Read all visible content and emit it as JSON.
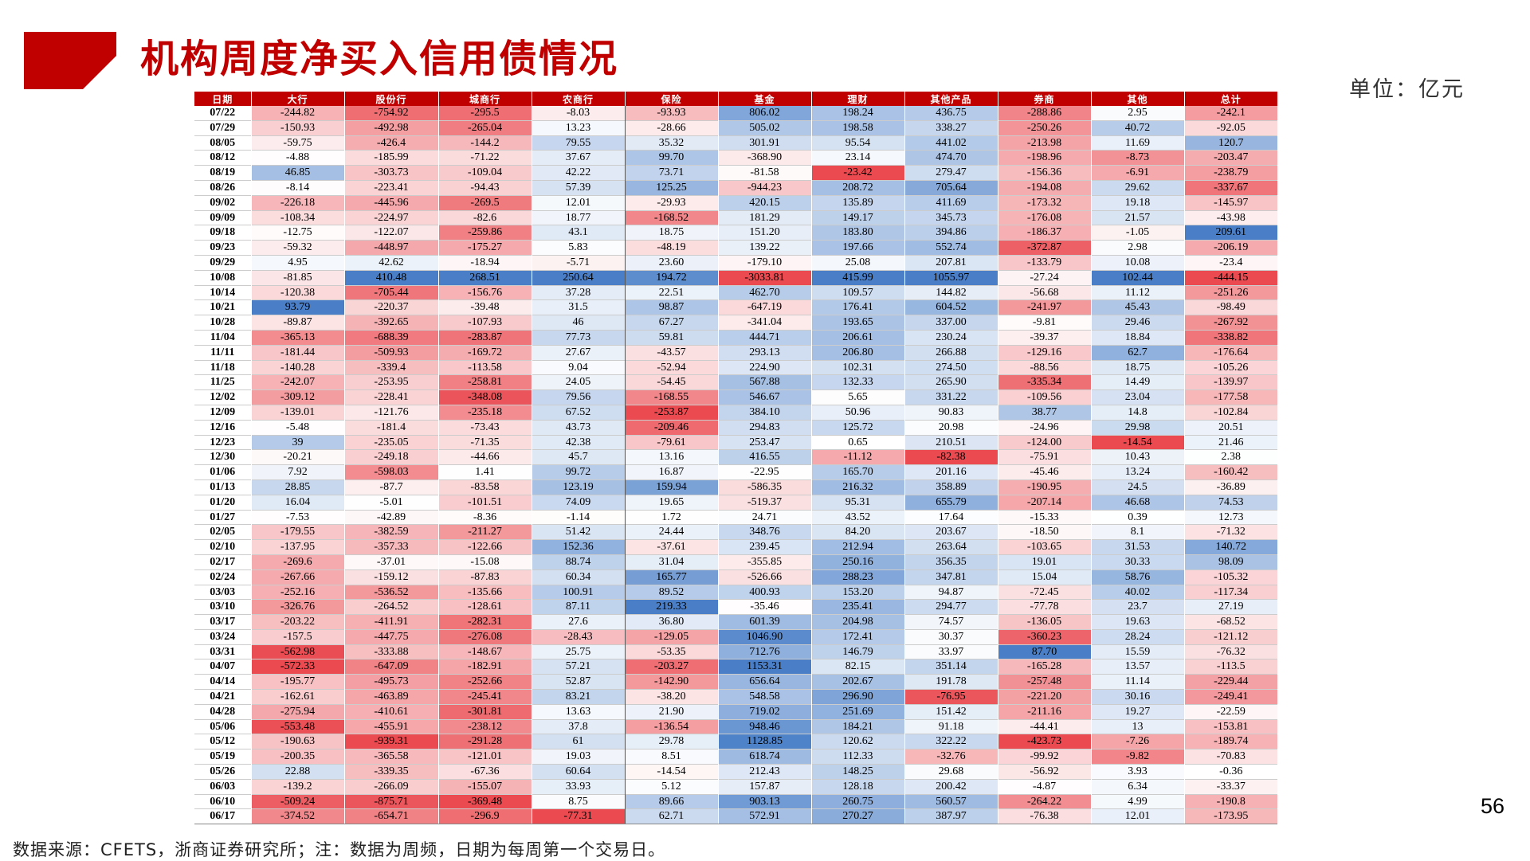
{
  "header": {
    "title": "机构周度净买入信用债情况",
    "unit": "单位：亿元",
    "page_number": "56"
  },
  "footer": {
    "source": "数据来源：CFETS，浙商证券研究所；注：数据为周频，日期为每周第一个交易日。"
  },
  "colors": {
    "brand_red": "#c00000",
    "positive_blue": "#4a7fc8",
    "negative_red": "#ea4a50"
  },
  "table": {
    "columns": [
      "日期",
      "大行",
      "股份行",
      "城商行",
      "农商行",
      "保险",
      "基金",
      "理财",
      "其他产品",
      "券商",
      "其他",
      "总计"
    ],
    "rows": [
      [
        "07/22",
        "-244.82",
        "-754.92",
        "-295.5",
        "-8.03",
        "-93.93",
        "806.02",
        "198.24",
        "436.75",
        "-288.86",
        "2.95",
        "-242.1"
      ],
      [
        "07/29",
        "-150.93",
        "-492.98",
        "-265.04",
        "13.23",
        "-28.66",
        "505.02",
        "198.58",
        "338.27",
        "-250.26",
        "40.72",
        "-92.05"
      ],
      [
        "08/05",
        "-59.75",
        "-426.4",
        "-144.2",
        "79.55",
        "35.32",
        "301.91",
        "95.54",
        "441.02",
        "-213.98",
        "11.69",
        "120.7"
      ],
      [
        "08/12",
        "-4.88",
        "-185.99",
        "-71.22",
        "37.67",
        "99.70",
        "-368.90",
        "23.14",
        "474.70",
        "-198.96",
        "-8.73",
        "-203.47"
      ],
      [
        "08/19",
        "46.85",
        "-303.73",
        "-109.04",
        "42.22",
        "73.71",
        "-81.58",
        "-23.42",
        "279.47",
        "-156.36",
        "-6.91",
        "-238.79"
      ],
      [
        "08/26",
        "-8.14",
        "-223.41",
        "-94.43",
        "57.39",
        "125.25",
        "-944.23",
        "208.72",
        "705.64",
        "-194.08",
        "29.62",
        "-337.67"
      ],
      [
        "09/02",
        "-226.18",
        "-445.96",
        "-269.5",
        "12.01",
        "-29.93",
        "420.15",
        "135.89",
        "411.69",
        "-173.32",
        "19.18",
        "-145.97"
      ],
      [
        "09/09",
        "-108.34",
        "-224.97",
        "-82.6",
        "18.77",
        "-168.52",
        "181.29",
        "149.17",
        "345.73",
        "-176.08",
        "21.57",
        "-43.98"
      ],
      [
        "09/18",
        "-12.75",
        "-122.07",
        "-259.86",
        "43.1",
        "18.75",
        "151.20",
        "183.80",
        "394.86",
        "-186.37",
        "-1.05",
        "209.61"
      ],
      [
        "09/23",
        "-59.32",
        "-448.97",
        "-175.27",
        "5.83",
        "-48.19",
        "139.22",
        "197.66",
        "552.74",
        "-372.87",
        "2.98",
        "-206.19"
      ],
      [
        "09/29",
        "4.95",
        "42.62",
        "-18.94",
        "-5.71",
        "23.60",
        "-179.10",
        "25.08",
        "207.81",
        "-133.79",
        "10.08",
        "-23.4"
      ],
      [
        "10/08",
        "-81.85",
        "410.48",
        "268.51",
        "250.64",
        "194.72",
        "-3033.81",
        "415.99",
        "1055.97",
        "-27.24",
        "102.44",
        "-444.15"
      ],
      [
        "10/14",
        "-120.38",
        "-705.44",
        "-156.76",
        "37.28",
        "22.51",
        "462.70",
        "109.57",
        "144.82",
        "-56.68",
        "11.12",
        "-251.26"
      ],
      [
        "10/21",
        "93.79",
        "-220.37",
        "-39.48",
        "31.5",
        "98.87",
        "-647.19",
        "176.41",
        "604.52",
        "-241.97",
        "45.43",
        "-98.49"
      ],
      [
        "10/28",
        "-89.87",
        "-392.65",
        "-107.93",
        "46",
        "67.27",
        "-341.04",
        "193.65",
        "337.00",
        "-9.81",
        "29.46",
        "-267.92"
      ],
      [
        "11/04",
        "-365.13",
        "-688.39",
        "-283.87",
        "77.73",
        "59.81",
        "444.71",
        "206.61",
        "230.24",
        "-39.37",
        "18.84",
        "-338.82"
      ],
      [
        "11/11",
        "-181.44",
        "-509.93",
        "-169.72",
        "27.67",
        "-43.57",
        "293.13",
        "206.80",
        "266.88",
        "-129.16",
        "62.7",
        "-176.64"
      ],
      [
        "11/18",
        "-140.28",
        "-339.4",
        "-113.58",
        "9.04",
        "-52.94",
        "224.90",
        "102.31",
        "274.50",
        "-88.56",
        "18.75",
        "-105.26"
      ],
      [
        "11/25",
        "-242.07",
        "-253.95",
        "-258.81",
        "24.05",
        "-54.45",
        "567.88",
        "132.33",
        "265.90",
        "-335.34",
        "14.49",
        "-139.97"
      ],
      [
        "12/02",
        "-309.12",
        "-228.41",
        "-348.08",
        "79.56",
        "-168.55",
        "546.67",
        "5.65",
        "331.22",
        "-109.56",
        "23.04",
        "-177.58"
      ],
      [
        "12/09",
        "-139.01",
        "-121.76",
        "-235.18",
        "67.52",
        "-253.87",
        "384.10",
        "50.96",
        "90.83",
        "38.77",
        "14.8",
        "-102.84"
      ],
      [
        "12/16",
        "-5.48",
        "-181.4",
        "-73.43",
        "43.73",
        "-209.46",
        "294.83",
        "125.72",
        "20.98",
        "-24.96",
        "29.98",
        "20.51"
      ],
      [
        "12/23",
        "39",
        "-235.05",
        "-71.35",
        "42.38",
        "-79.61",
        "253.47",
        "0.65",
        "210.51",
        "-124.00",
        "-14.54",
        "21.46"
      ],
      [
        "12/30",
        "-20.21",
        "-249.18",
        "-44.66",
        "45.7",
        "13.16",
        "416.55",
        "-11.12",
        "-82.38",
        "-75.91",
        "10.43",
        "2.38"
      ],
      [
        "01/06",
        "7.92",
        "-598.03",
        "1.41",
        "99.72",
        "16.87",
        "-22.95",
        "165.70",
        "201.16",
        "-45.46",
        "13.24",
        "-160.42"
      ],
      [
        "01/13",
        "28.85",
        "-87.7",
        "-83.58",
        "123.19",
        "159.94",
        "-586.35",
        "216.32",
        "358.89",
        "-190.95",
        "24.5",
        "-36.89"
      ],
      [
        "01/20",
        "16.04",
        "-5.01",
        "-101.51",
        "74.09",
        "19.65",
        "-519.37",
        "95.31",
        "655.79",
        "-207.14",
        "46.68",
        "74.53"
      ],
      [
        "01/27",
        "-7.53",
        "-42.89",
        "-8.36",
        "-1.14",
        "1.72",
        "24.71",
        "43.52",
        "17.64",
        "-15.33",
        "0.39",
        "12.73"
      ],
      [
        "02/05",
        "-179.55",
        "-382.59",
        "-211.27",
        "51.42",
        "24.44",
        "348.76",
        "84.20",
        "203.67",
        "-18.50",
        "8.1",
        "-71.32"
      ],
      [
        "02/10",
        "-137.95",
        "-357.33",
        "-122.66",
        "152.36",
        "-37.61",
        "239.45",
        "212.94",
        "263.64",
        "-103.65",
        "31.53",
        "140.72"
      ],
      [
        "02/17",
        "-269.6",
        "-37.01",
        "-15.08",
        "88.74",
        "31.04",
        "-355.85",
        "250.16",
        "356.35",
        "19.01",
        "30.33",
        "98.09"
      ],
      [
        "02/24",
        "-267.66",
        "-159.12",
        "-87.83",
        "60.34",
        "165.77",
        "-526.66",
        "288.23",
        "347.81",
        "15.04",
        "58.76",
        "-105.32"
      ],
      [
        "03/03",
        "-252.16",
        "-536.52",
        "-135.66",
        "100.91",
        "89.52",
        "400.93",
        "153.20",
        "94.87",
        "-72.45",
        "40.02",
        "-117.34"
      ],
      [
        "03/10",
        "-326.76",
        "-264.52",
        "-128.61",
        "87.11",
        "219.33",
        "-35.46",
        "235.41",
        "294.77",
        "-77.78",
        "23.7",
        "27.19"
      ],
      [
        "03/17",
        "-203.22",
        "-411.91",
        "-282.31",
        "27.6",
        "36.80",
        "601.39",
        "204.98",
        "74.57",
        "-136.05",
        "19.63",
        "-68.52"
      ],
      [
        "03/24",
        "-157.5",
        "-447.75",
        "-276.08",
        "-28.43",
        "-129.05",
        "1046.90",
        "172.41",
        "30.37",
        "-360.23",
        "28.24",
        "-121.12"
      ],
      [
        "03/31",
        "-562.98",
        "-333.88",
        "-148.67",
        "25.75",
        "-53.35",
        "712.76",
        "146.79",
        "33.97",
        "87.70",
        "15.59",
        "-76.32"
      ],
      [
        "04/07",
        "-572.33",
        "-647.09",
        "-182.91",
        "57.21",
        "-203.27",
        "1153.31",
        "82.15",
        "351.14",
        "-165.28",
        "13.57",
        "-113.5"
      ],
      [
        "04/14",
        "-195.77",
        "-495.73",
        "-252.66",
        "52.87",
        "-142.90",
        "656.64",
        "202.67",
        "191.78",
        "-257.48",
        "11.14",
        "-229.44"
      ],
      [
        "04/21",
        "-162.61",
        "-463.89",
        "-245.41",
        "83.21",
        "-38.20",
        "548.58",
        "296.90",
        "-76.95",
        "-221.20",
        "30.16",
        "-249.41"
      ],
      [
        "04/28",
        "-275.94",
        "-410.61",
        "-301.81",
        "13.63",
        "21.90",
        "719.02",
        "251.69",
        "151.42",
        "-211.16",
        "19.27",
        "-22.59"
      ],
      [
        "05/06",
        "-553.48",
        "-455.91",
        "-238.12",
        "37.8",
        "-136.54",
        "948.46",
        "184.21",
        "91.18",
        "-44.41",
        "13",
        "-153.81"
      ],
      [
        "05/12",
        "-190.63",
        "-939.31",
        "-291.28",
        "61",
        "29.78",
        "1128.85",
        "120.62",
        "322.22",
        "-423.73",
        "-7.26",
        "-189.74"
      ],
      [
        "05/19",
        "-200.35",
        "-365.58",
        "-121.01",
        "19.03",
        "8.51",
        "618.74",
        "112.33",
        "-32.76",
        "-99.92",
        "-9.82",
        "-70.83"
      ],
      [
        "05/26",
        "22.88",
        "-339.35",
        "-67.36",
        "60.64",
        "-14.54",
        "212.43",
        "148.25",
        "29.68",
        "-56.92",
        "3.93",
        "-0.36"
      ],
      [
        "06/03",
        "-139.2",
        "-266.09",
        "-155.07",
        "33.93",
        "5.12",
        "157.87",
        "128.18",
        "200.42",
        "-4.87",
        "6.34",
        "-33.37"
      ],
      [
        "06/10",
        "-509.24",
        "-875.71",
        "-369.48",
        "8.75",
        "89.66",
        "903.13",
        "260.75",
        "560.57",
        "-264.22",
        "4.99",
        "-190.8"
      ],
      [
        "06/17",
        "-374.52",
        "-654.71",
        "-296.9",
        "-77.31",
        "62.71",
        "572.91",
        "270.27",
        "387.97",
        "-76.38",
        "12.01",
        "-173.95"
      ]
    ]
  }
}
